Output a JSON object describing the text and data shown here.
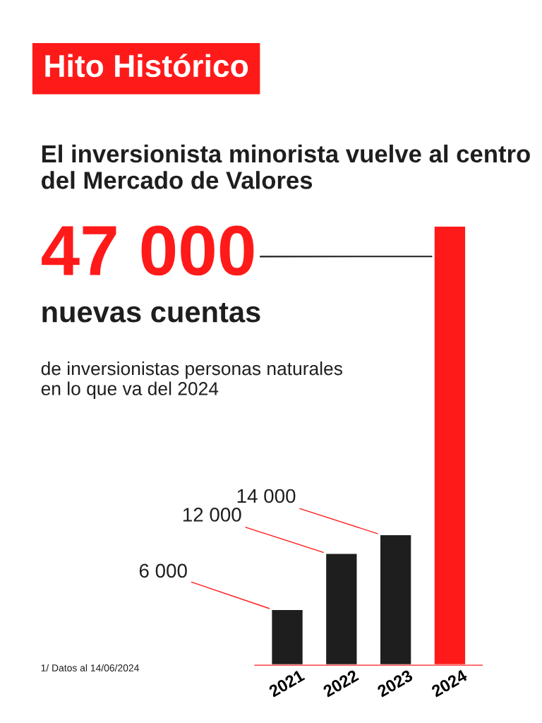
{
  "chart_data": {
    "type": "bar",
    "title": "Hito Histórico",
    "subtitle": "El inversionista minorista vuelve al centro del Mercado de Valores",
    "categories": [
      "2021",
      "2022",
      "2023",
      "2024"
    ],
    "values": [
      6000,
      12000,
      14000,
      47000
    ],
    "colors": [
      "#1e1e1e",
      "#1e1e1e",
      "#1e1e1e",
      "#ff1a1a"
    ],
    "value_labels": [
      "6 000",
      "12 000",
      "14 000",
      "47 000"
    ],
    "annotations": [
      "nuevas cuentas",
      "de inversionistas personas naturales en lo que va del 2024",
      "1/ Datos al 14/06/2024"
    ]
  }
}
